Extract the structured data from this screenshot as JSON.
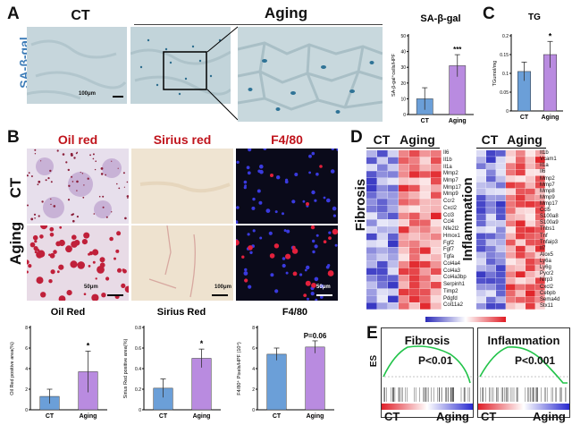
{
  "panel_A": {
    "letter": "A",
    "label_ct": "CT",
    "label_aging": "Aging",
    "stain_label": "SA-β-gal",
    "scale": "100μm"
  },
  "panel_B": {
    "letter": "B",
    "col_headers": [
      "Oil red",
      "Sirius red",
      "F4/80"
    ],
    "row_labels": [
      "CT",
      "Aging"
    ],
    "scales": [
      "50μm",
      "100μm",
      "50μm"
    ]
  },
  "panel_C": {
    "letter": "C"
  },
  "panel_D": {
    "letter": "D",
    "group_ct": "CT",
    "group_aging": "Aging",
    "fibrosis_title": "Fibrosis",
    "inflammation_title": "Inflammation",
    "fibrosis_genes": [
      "Il6",
      "Il1b",
      "Il1a",
      "Mmp2",
      "Mmp7",
      "Mmp17",
      "Mmp9",
      "Ccr2",
      "Cxcl2",
      "Ccl3",
      "Ccl4",
      "Nfe2l2",
      "Hmox1",
      "Fgf2",
      "Fgf7",
      "Tgfa",
      "Col4a4",
      "Col4a3",
      "Col4a3bp",
      "Serpinh1",
      "Timp2",
      "Pdgfd",
      "Col11a2"
    ],
    "inflammation_genes": [
      "Il1b",
      "Vcam1",
      "Il1a",
      "Il6",
      "Mmp2",
      "Mmp7",
      "Mmp8",
      "Mmp9",
      "Mmp17",
      "Ccl5",
      "S100a8",
      "S100a9",
      "Thbs1",
      "Tnf",
      "Tnfaip3",
      "Il7",
      "Alox5",
      "Ly6a",
      "Ly6g",
      "Pycr2",
      "Nlrp3",
      "Cxcl2",
      "Cebpb",
      "Sema4d",
      "Stx11"
    ]
  },
  "panel_E": {
    "letter": "E",
    "es_label": "ES",
    "fibrosis_title": "Fibrosis",
    "fibrosis_p": "P<0.01",
    "inflammation_title": "Inflammation",
    "inflammation_p": "P<0.001",
    "left_label": "CT",
    "right_label": "Aging"
  },
  "colors": {
    "bar_ct": "#6b9fd8",
    "bar_aging": "#b98be0",
    "accent_red": "#c0141c",
    "accent_blue": "#3e7db8"
  },
  "chart_data": [
    {
      "id": "sa-b-gal",
      "type": "bar",
      "title": "SA-β-gal",
      "ylabel": "SA-β-gal⁺cells/HPF",
      "categories": [
        "CT",
        "Aging"
      ],
      "values": [
        10,
        31
      ],
      "errors": [
        7,
        7
      ],
      "ylim": [
        0,
        50
      ],
      "yticks": [
        0,
        10,
        20,
        30,
        40,
        50
      ],
      "significance": "***"
    },
    {
      "id": "tg",
      "type": "bar",
      "title": "TG",
      "ylabel": "TGumol/mg",
      "categories": [
        "CT",
        "Aging"
      ],
      "values": [
        0.105,
        0.15
      ],
      "errors": [
        0.025,
        0.035
      ],
      "ylim": [
        0,
        0.2
      ],
      "yticks": [
        0.0,
        0.05,
        0.1,
        0.15,
        0.2
      ],
      "significance": "*"
    },
    {
      "id": "oil-red",
      "type": "bar",
      "title": "Oil Red",
      "ylabel": "Oil Red positive area(%)",
      "categories": [
        "CT",
        "Aging"
      ],
      "values": [
        1.3,
        3.7
      ],
      "errors": [
        0.7,
        2.0
      ],
      "ylim": [
        0,
        8
      ],
      "yticks": [
        0,
        2,
        4,
        6,
        8
      ],
      "significance": "*"
    },
    {
      "id": "sirius-red",
      "type": "bar",
      "title": "Sirius Red",
      "ylabel": "Sirius Red positive area(%)",
      "categories": [
        "CT",
        "Aging"
      ],
      "values": [
        0.21,
        0.5
      ],
      "errors": [
        0.09,
        0.09
      ],
      "ylim": [
        0,
        0.8
      ],
      "yticks": [
        0.0,
        0.2,
        0.4,
        0.6,
        0.8
      ],
      "significance": "*"
    },
    {
      "id": "f4-80",
      "type": "bar",
      "title": "F4/80",
      "ylabel": "F4/80⁺ Pixels/HPF (10⁴)",
      "categories": [
        "CT",
        "Aging"
      ],
      "values": [
        5.4,
        6.1
      ],
      "errors": [
        0.6,
        0.6
      ],
      "ylim": [
        0,
        8
      ],
      "yticks": [
        0,
        2,
        4,
        6,
        8
      ],
      "significance": "P=0.06"
    }
  ]
}
